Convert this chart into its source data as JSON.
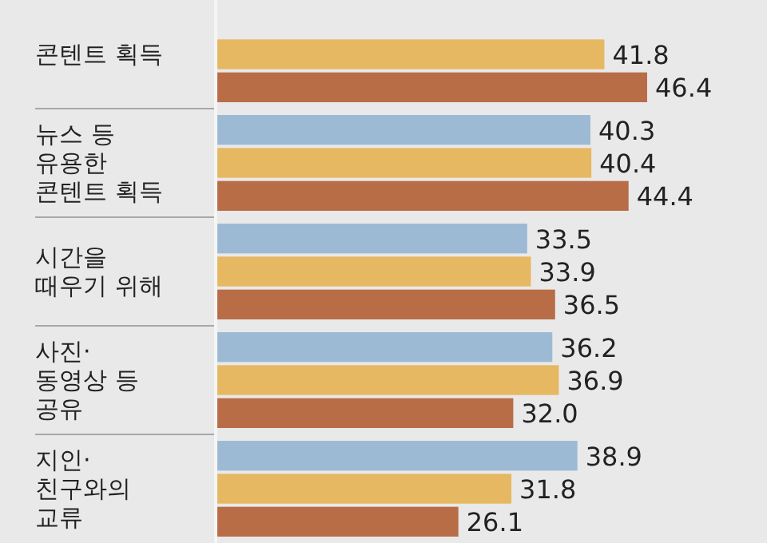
{
  "chart_data": {
    "type": "bar",
    "orientation": "horizontal",
    "categories": [
      "콘텐트 획득",
      "뉴스 등\n유용한\n콘텐트 획득",
      "시간을\n때우기 위해",
      "사진·\n동영상 등\n공유",
      "지인·\n친구와의\n교류"
    ],
    "series": [
      {
        "color": "#9dbad4",
        "values": [
          null,
          40.3,
          33.5,
          36.2,
          38.9
        ],
        "value_labels": [
          null,
          "40.3",
          "33.5",
          "36.2",
          "38.9"
        ]
      },
      {
        "color": "#e6b862",
        "values": [
          41.8,
          40.4,
          33.9,
          36.9,
          31.8
        ],
        "value_labels": [
          "41.8",
          "40.4",
          "33.9",
          "36.9",
          "31.8"
        ]
      },
      {
        "color": "#b86d47",
        "values": [
          46.4,
          44.4,
          36.5,
          32.0,
          26.1
        ],
        "value_labels": [
          "46.4",
          "44.4",
          "36.5",
          "32.0",
          "26.1"
        ]
      }
    ]
  }
}
